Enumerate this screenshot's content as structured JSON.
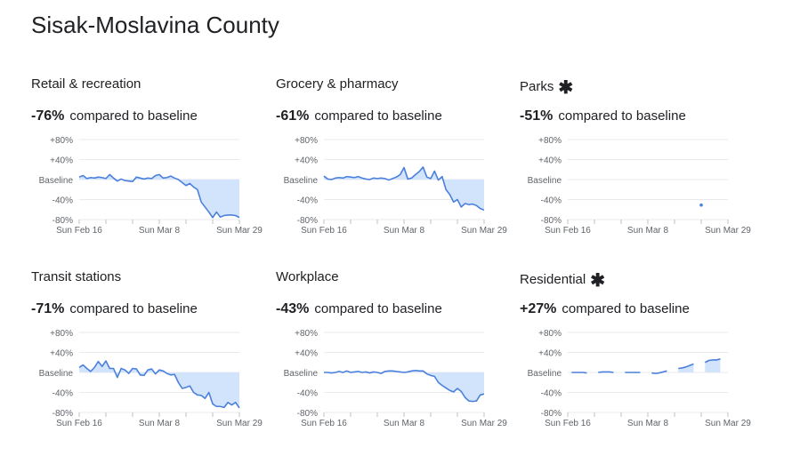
{
  "title": "Sisak-Moslavina County",
  "colors": {
    "line": "#4a80dc",
    "fill": "#d2e3fc",
    "grid": "#e8eaed"
  },
  "chart_data": [
    {
      "type": "line",
      "title": "Retail & recreation",
      "change": "-76%",
      "change_label": "compared to baseline",
      "starred": false,
      "x_start": "Feb 16",
      "x_ticks": [
        "Sun Feb 16",
        "Sun Mar 8",
        "Sun Mar 29"
      ],
      "y_ticks": [
        "+80%",
        "+40%",
        "Baseline",
        "-40%",
        "-80%"
      ],
      "ylim": [
        -80,
        80
      ],
      "values": [
        5,
        8,
        2,
        4,
        3,
        5,
        4,
        2,
        10,
        3,
        -3,
        1,
        -2,
        -3,
        -4,
        5,
        3,
        1,
        3,
        2,
        8,
        10,
        3,
        4,
        7,
        3,
        0,
        -6,
        -12,
        -8,
        -15,
        -20,
        -45,
        -55,
        -65,
        -76,
        -65,
        -75,
        -72,
        -71,
        -71,
        -72,
        -76
      ]
    },
    {
      "type": "line",
      "title": "Grocery & pharmacy",
      "change": "-61%",
      "change_label": "compared to baseline",
      "starred": false,
      "x_start": "Feb 16",
      "x_ticks": [
        "Sun Feb 16",
        "Sun Mar 8",
        "Sun Mar 29"
      ],
      "y_ticks": [
        "+80%",
        "+40%",
        "Baseline",
        "-40%",
        "-80%"
      ],
      "ylim": [
        -80,
        80
      ],
      "values": [
        7,
        1,
        0,
        3,
        4,
        3,
        6,
        5,
        4,
        6,
        3,
        1,
        0,
        3,
        2,
        3,
        2,
        -1,
        2,
        5,
        10,
        24,
        1,
        3,
        10,
        16,
        25,
        5,
        2,
        17,
        -1,
        6,
        -20,
        -30,
        -45,
        -40,
        -55,
        -48,
        -50,
        -49,
        -52,
        -58,
        -61
      ]
    },
    {
      "type": "line",
      "title": "Parks",
      "change": "-51%",
      "change_label": "compared to baseline",
      "starred": true,
      "x_start": "Feb 16",
      "x_ticks": [
        "Sun Feb 16",
        "Sun Mar 8",
        "Sun Mar 29"
      ],
      "y_ticks": [
        "+80%",
        "+40%",
        "Baseline",
        "-40%",
        "-80%"
      ],
      "ylim": [
        -80,
        80
      ],
      "values": [
        null,
        null,
        null,
        null,
        null,
        null,
        null,
        null,
        null,
        null,
        null,
        null,
        null,
        null,
        null,
        null,
        null,
        null,
        null,
        null,
        null,
        null,
        null,
        null,
        null,
        null,
        null,
        null,
        null,
        null,
        null,
        null,
        null,
        null,
        null,
        -51,
        null,
        null,
        null,
        null,
        null,
        null,
        null
      ]
    },
    {
      "type": "line",
      "title": "Transit stations",
      "change": "-71%",
      "change_label": "compared to baseline",
      "starred": false,
      "x_start": "Feb 16",
      "x_ticks": [
        "Sun Feb 16",
        "Sun Mar 8",
        "Sun Mar 29"
      ],
      "y_ticks": [
        "+80%",
        "+40%",
        "Baseline",
        "-40%",
        "-80%"
      ],
      "ylim": [
        -80,
        80
      ],
      "values": [
        10,
        15,
        8,
        2,
        10,
        22,
        12,
        23,
        8,
        8,
        -10,
        8,
        5,
        -2,
        8,
        7,
        -5,
        -6,
        5,
        7,
        -3,
        5,
        3,
        -2,
        -5,
        -4,
        -20,
        -32,
        -30,
        -27,
        -40,
        -45,
        -46,
        -52,
        -40,
        -63,
        -68,
        -68,
        -70,
        -60,
        -65,
        -60,
        -71
      ]
    },
    {
      "type": "line",
      "title": "Workplace",
      "change": "-43%",
      "change_label": "compared to baseline",
      "starred": false,
      "x_start": "Feb 16",
      "x_ticks": [
        "Sun Feb 16",
        "Sun Mar 8",
        "Sun Mar 29"
      ],
      "y_ticks": [
        "+80%",
        "+40%",
        "Baseline",
        "-40%",
        "-80%"
      ],
      "ylim": [
        -80,
        80
      ],
      "values": [
        0,
        0,
        -1,
        0,
        2,
        0,
        3,
        0,
        1,
        2,
        0,
        1,
        -1,
        1,
        0,
        -2,
        2,
        3,
        3,
        2,
        1,
        0,
        1,
        3,
        4,
        3,
        3,
        -3,
        -6,
        -8,
        -20,
        -26,
        -31,
        -36,
        -39,
        -32,
        -38,
        -50,
        -57,
        -58,
        -57,
        -45,
        -43
      ]
    },
    {
      "type": "line",
      "title": "Residential",
      "change": "+27%",
      "change_label": "compared to baseline",
      "starred": true,
      "x_start": "Feb 16",
      "x_ticks": [
        "Sun Feb 16",
        "Sun Mar 8",
        "Sun Mar 29"
      ],
      "y_ticks": [
        "+80%",
        "+40%",
        "Baseline",
        "-40%",
        "-80%"
      ],
      "ylim": [
        -80,
        80
      ],
      "values": [
        null,
        0,
        0,
        0,
        0,
        -1,
        null,
        null,
        0,
        1,
        1,
        1,
        0,
        null,
        null,
        0,
        0,
        0,
        0,
        0,
        null,
        null,
        -1,
        -2,
        -1,
        1,
        3,
        null,
        null,
        8,
        9,
        11,
        14,
        17,
        null,
        null,
        20,
        24,
        25,
        25,
        27,
        null,
        null
      ]
    }
  ]
}
